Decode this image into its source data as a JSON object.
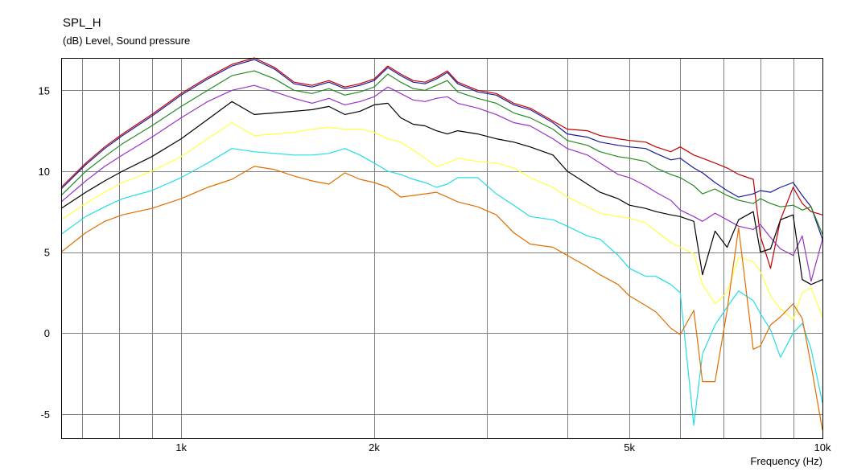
{
  "chart_data": {
    "type": "line",
    "title": "SPL_H",
    "ylabel": "(dB)  Level, Sound pressure",
    "xlabel": "Frequency  (Hz)",
    "x_scale": "log",
    "xlim": [
      650,
      10000
    ],
    "ylim": [
      -6.5,
      17
    ],
    "grid": true,
    "colors": {
      "frame": "#000000",
      "grid": "#808080"
    },
    "x_ticks": [
      {
        "value": 1000,
        "label": "1k"
      },
      {
        "value": 2000,
        "label": "2k"
      },
      {
        "value": 5000,
        "label": "5k"
      },
      {
        "value": 10000,
        "label": "10k"
      }
    ],
    "y_ticks": [
      {
        "value": 15,
        "label": "15"
      },
      {
        "value": 10,
        "label": "10"
      },
      {
        "value": 5,
        "label": "5"
      },
      {
        "value": 0,
        "label": "0"
      },
      {
        "value": -5,
        "label": "-5"
      }
    ],
    "x": [
      650,
      710,
      760,
      810,
      900,
      1000,
      1100,
      1200,
      1300,
      1400,
      1500,
      1600,
      1700,
      1800,
      1900,
      2000,
      2100,
      2200,
      2300,
      2400,
      2500,
      2600,
      2700,
      2900,
      3100,
      3300,
      3500,
      3800,
      4000,
      4300,
      4500,
      4800,
      5000,
      5300,
      5500,
      5800,
      6000,
      6300,
      6500,
      6800,
      7100,
      7400,
      7800,
      8000,
      8300,
      8600,
      9000,
      9300,
      9600,
      10000
    ],
    "series": [
      {
        "color": "#c00000",
        "values": [
          9.0,
          10.5,
          11.5,
          12.3,
          13.5,
          14.8,
          15.8,
          16.6,
          17.0,
          16.4,
          15.5,
          15.3,
          15.6,
          15.2,
          15.4,
          15.7,
          16.5,
          16.0,
          15.6,
          15.5,
          15.8,
          16.2,
          15.5,
          15.0,
          14.8,
          14.2,
          13.9,
          13.1,
          12.6,
          12.5,
          12.2,
          12.0,
          11.9,
          11.8,
          11.5,
          11.2,
          11.5,
          11.0,
          10.8,
          10.5,
          10.2,
          9.8,
          9.5,
          6.0,
          4.0,
          7.0,
          9.0,
          8.0,
          7.5,
          7.3
        ]
      },
      {
        "color": "#1a1a99",
        "values": [
          8.9,
          10.4,
          11.4,
          12.2,
          13.4,
          14.7,
          15.7,
          16.5,
          16.9,
          16.3,
          15.4,
          15.2,
          15.5,
          15.1,
          15.3,
          15.6,
          16.4,
          15.9,
          15.5,
          15.4,
          15.7,
          16.1,
          15.4,
          14.9,
          14.7,
          14.1,
          13.8,
          13.0,
          12.3,
          12.1,
          11.8,
          11.6,
          11.5,
          11.4,
          11.1,
          10.7,
          10.8,
          10.2,
          9.9,
          9.3,
          8.8,
          8.4,
          8.6,
          8.8,
          8.7,
          9.0,
          9.3,
          8.5,
          7.8,
          5.8
        ]
      },
      {
        "color": "#228b22",
        "values": [
          8.5,
          10.0,
          10.9,
          11.7,
          12.8,
          14.0,
          15.0,
          15.9,
          16.2,
          15.7,
          15.0,
          14.8,
          15.1,
          14.7,
          14.9,
          15.2,
          16.0,
          15.5,
          15.1,
          15.0,
          15.3,
          15.6,
          14.9,
          14.5,
          14.2,
          13.6,
          13.3,
          12.6,
          11.9,
          11.6,
          11.2,
          10.9,
          10.8,
          10.6,
          10.2,
          9.8,
          9.6,
          9.1,
          8.6,
          8.9,
          8.5,
          8.2,
          8.0,
          8.3,
          8.0,
          7.8,
          7.9,
          7.6,
          7.8,
          6.1
        ]
      },
      {
        "color": "#9b30c8",
        "values": [
          8.1,
          9.4,
          10.3,
          11.0,
          12.1,
          13.3,
          14.3,
          15.0,
          15.3,
          14.9,
          14.5,
          14.2,
          14.5,
          14.1,
          14.3,
          14.6,
          15.2,
          14.8,
          14.4,
          14.3,
          14.5,
          14.6,
          14.2,
          13.9,
          13.5,
          13.0,
          12.8,
          12.0,
          11.4,
          11.0,
          10.5,
          9.8,
          9.6,
          9.1,
          8.7,
          8.2,
          7.6,
          7.2,
          6.9,
          7.4,
          7.0,
          6.6,
          6.4,
          6.7,
          5.9,
          5.2,
          4.8,
          6.0,
          3.2,
          5.8
        ]
      },
      {
        "color": "#000000",
        "values": [
          7.7,
          8.7,
          9.4,
          10.0,
          10.9,
          12.0,
          13.2,
          14.3,
          13.5,
          13.6,
          13.7,
          13.8,
          14.0,
          13.5,
          13.7,
          14.1,
          14.2,
          13.3,
          12.9,
          12.8,
          12.5,
          12.3,
          12.5,
          12.3,
          12.0,
          11.8,
          11.5,
          11.0,
          10.0,
          9.2,
          8.7,
          8.3,
          7.9,
          7.7,
          7.5,
          7.3,
          7.2,
          6.9,
          3.6,
          6.3,
          5.3,
          7.0,
          7.5,
          5.0,
          5.2,
          7.0,
          7.3,
          3.3,
          3.0,
          3.3
        ]
      },
      {
        "color": "#ffff44",
        "values": [
          7.0,
          8.0,
          8.7,
          9.3,
          10.0,
          10.9,
          12.0,
          13.0,
          12.2,
          12.3,
          12.4,
          12.6,
          12.7,
          12.6,
          12.6,
          12.4,
          12.0,
          11.8,
          11.3,
          10.8,
          10.3,
          10.5,
          10.8,
          10.6,
          10.5,
          10.2,
          9.6,
          9.0,
          8.4,
          7.8,
          7.4,
          7.2,
          7.1,
          6.8,
          6.3,
          5.6,
          5.3,
          4.9,
          3.0,
          1.8,
          2.5,
          4.7,
          4.4,
          3.8,
          2.3,
          1.5,
          0.8,
          2.5,
          2.8,
          1.0
        ]
      },
      {
        "color": "#22dde8",
        "values": [
          6.1,
          7.2,
          7.8,
          8.3,
          8.8,
          9.6,
          10.5,
          11.4,
          11.2,
          11.1,
          11.0,
          11.0,
          11.1,
          11.4,
          11.0,
          10.5,
          10.0,
          9.8,
          9.5,
          9.3,
          9.0,
          9.2,
          9.6,
          9.6,
          8.6,
          7.9,
          7.2,
          7.0,
          6.6,
          6.0,
          5.8,
          4.8,
          4.0,
          3.5,
          3.5,
          3.0,
          2.5,
          -5.7,
          -1.3,
          0.5,
          1.6,
          2.6,
          2.0,
          1.2,
          0.2,
          -1.5,
          0.0,
          0.6,
          -1.0,
          -4.3
        ]
      },
      {
        "color": "#e06e00",
        "values": [
          5.0,
          6.2,
          6.9,
          7.3,
          7.7,
          8.3,
          9.0,
          9.5,
          10.3,
          10.1,
          9.7,
          9.4,
          9.2,
          9.9,
          9.5,
          9.3,
          9.0,
          8.4,
          8.5,
          8.6,
          8.7,
          8.4,
          8.1,
          7.8,
          7.3,
          6.2,
          5.5,
          5.3,
          4.8,
          4.1,
          3.6,
          3.0,
          2.3,
          1.7,
          1.3,
          0.3,
          -0.1,
          1.4,
          -3.0,
          -3.0,
          1.4,
          6.5,
          -1.0,
          -0.8,
          0.5,
          1.0,
          1.8,
          0.9,
          -2.0,
          -6.0
        ]
      }
    ]
  }
}
